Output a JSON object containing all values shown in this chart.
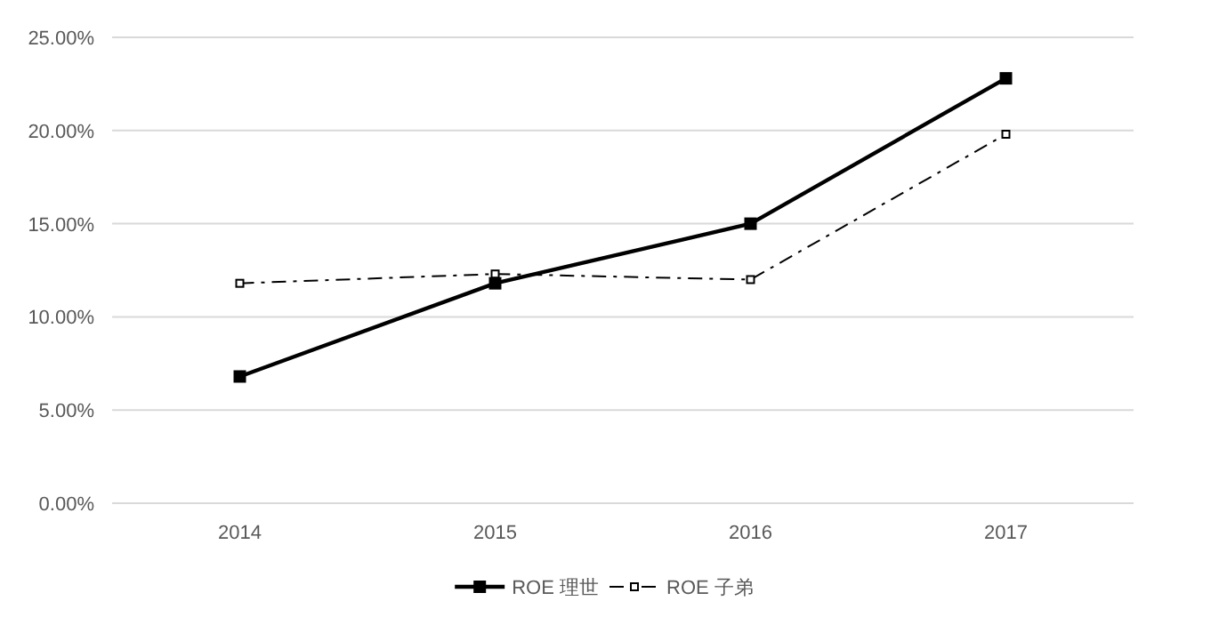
{
  "chart_data": {
    "type": "line",
    "categories": [
      "2014",
      "2015",
      "2016",
      "2017"
    ],
    "series": [
      {
        "name": "ROE 理世",
        "color": "#000000",
        "values": [
          6.8,
          11.8,
          15.0,
          22.8
        ],
        "marker": "square",
        "line_style": "solid"
      },
      {
        "name": "ROE 子弟",
        "color": "#000000",
        "values": [
          11.8,
          12.3,
          12.0,
          19.8
        ],
        "marker": "square",
        "line_style": "dashdot"
      }
    ],
    "ylim": [
      0,
      25
    ],
    "yticks": [
      {
        "value": 0,
        "label": "0.00%"
      },
      {
        "value": 5,
        "label": "5.00%"
      },
      {
        "value": 10,
        "label": "10.00%"
      },
      {
        "value": 15,
        "label": "15.00%"
      },
      {
        "value": 20,
        "label": "20.00%"
      },
      {
        "value": 25,
        "label": "25.00%"
      }
    ],
    "grid": "y",
    "legend": "bottom"
  }
}
